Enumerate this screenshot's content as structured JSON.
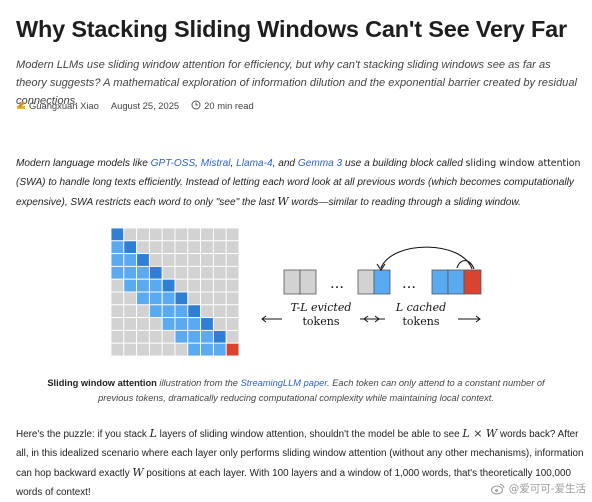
{
  "article": {
    "title": "Why Stacking Sliding Windows Can't See Very Far",
    "subtitle": "Modern LLMs use sliding window attention for efficiency, but why can't stacking sliding windows see as far as theory suggests? A mathematical exploration of information dilution and the exponential barrier created by residual connections.",
    "author": "Guangxuan Xiao",
    "date": "August 25, 2025",
    "read_time": "20 min read"
  },
  "intro": {
    "t1": "Modern language models like ",
    "link_gptoss": "GPT-OSS",
    "sep1": ", ",
    "link_mistral": "Mistral",
    "sep2": ", ",
    "link_llama": "Llama-4",
    "sep3": ", and ",
    "link_gemma": "Gemma 3",
    "t2": " use a building block called ",
    "swa_bold": "sliding window attention",
    "t3": " (SWA) to handle long texts efficiently. Instead of letting each word look at all previous words (which becomes computationally expensive), SWA restricts each word to only \"see\" the last ",
    "var_w": "W",
    "t4": " words—similar to reading through a sliding window."
  },
  "figure": {
    "matrix_colors": {
      "attend": "#5aaaf2",
      "diagonal": "#2f7fd6",
      "current": "#d9432f",
      "empty": "#d2d2d2"
    },
    "dots": "…",
    "evicted_label_line1": "T-L evicted",
    "evicted_label_line2": "tokens",
    "cached_label_line1": "L cached",
    "cached_label_line2": "tokens"
  },
  "caption": {
    "bold": "Sliding window attention",
    "t1": " illustration from the ",
    "link": "StreamingLLM paper",
    "t2": ". Each token can only attend to a constant number of previous tokens, dramatically reducing computational complexity while maintaining local context."
  },
  "puzzle": {
    "t1": "Here's the puzzle: if you stack ",
    "var_l": "L",
    "t2": " layers of sliding window attention, shouldn't the model be able to see ",
    "expr": "L × W",
    "t3": " words back? After all, in this idealized scenario where each layer only performs sliding window attention (without any other mechanisms), information can hop backward exactly ",
    "var_w": "W",
    "t4": " positions at each layer. With 100 layers and a window of 1,000 words, that's theoretically 100,000 words of context!"
  },
  "watermark": {
    "text": "@爱可可-爱生活"
  }
}
